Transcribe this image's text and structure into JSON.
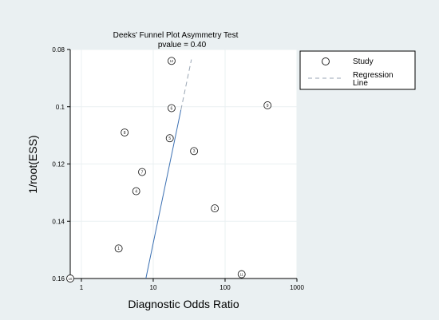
{
  "chart_data": {
    "type": "scatter",
    "title": "Deeks' Funnel Plot Asymmetry Test",
    "subtitle": "pvalue = 0.40",
    "xlabel": "Diagnostic Odds Ratio",
    "ylabel": "1/root(ESS)",
    "x_scale": "log10",
    "xlim": [
      0.7,
      1000
    ],
    "ylim": [
      0.08,
      0.16
    ],
    "y_reversed": true,
    "x_ticks": [
      {
        "value": 1,
        "label": "1"
      },
      {
        "value": 10,
        "label": "10"
      },
      {
        "value": 100,
        "label": "100"
      },
      {
        "value": 1000,
        "label": "1000"
      }
    ],
    "y_ticks": [
      {
        "value": 0.08,
        "label": "0.08"
      },
      {
        "value": 0.1,
        "label": "0.1"
      },
      {
        "value": 0.12,
        "label": "0.12"
      },
      {
        "value": 0.14,
        "label": "0.14"
      },
      {
        "value": 0.16,
        "label": "0.16"
      }
    ],
    "grid": true,
    "legend_position": "right",
    "legend": [
      {
        "key": "study",
        "label": "Study"
      },
      {
        "key": "regression",
        "label": "Regression Line"
      }
    ],
    "points": [
      {
        "id": "1",
        "x": 3.3,
        "y": 0.1495
      },
      {
        "id": "2",
        "x": 72,
        "y": 0.1355
      },
      {
        "id": "3",
        "x": 37,
        "y": 0.1155
      },
      {
        "id": "4",
        "x": 5.8,
        "y": 0.1295
      },
      {
        "id": "5",
        "x": 17,
        "y": 0.111
      },
      {
        "id": "6",
        "x": 18,
        "y": 0.1005
      },
      {
        "id": "7",
        "x": 7,
        "y": 0.1228
      },
      {
        "id": "8",
        "x": 4,
        "y": 0.109
      },
      {
        "id": "9",
        "x": 390,
        "y": 0.0995
      },
      {
        "id": "10",
        "x": 0.7,
        "y": 0.16
      },
      {
        "id": "11",
        "x": 170,
        "y": 0.1585
      },
      {
        "id": "12",
        "x": 18,
        "y": 0.084
      }
    ],
    "regression_line": [
      {
        "x": 7.9,
        "y": 0.16
      },
      {
        "x": 34,
        "y": 0.0835
      }
    ],
    "colors": {
      "background": "#ffffff",
      "plot_background": "#ffffff",
      "outer_background": "#eaf0f2",
      "grid": "#eaf0f2",
      "axis": "#000000",
      "marker": "#222222",
      "regression_solid": "#3a6fb2",
      "regression_dash": "#9aa6b4"
    }
  }
}
